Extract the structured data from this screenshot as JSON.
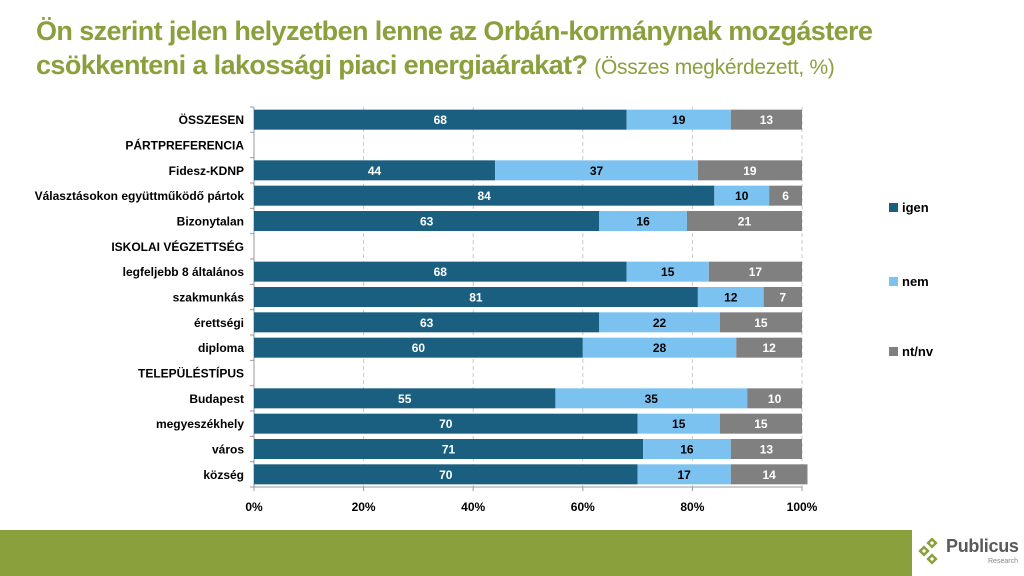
{
  "title": {
    "main": "Ön szerint jelen helyzetben lenne az Orbán-kormánynak mozgástere csökkenteni a lakossági piaci energiaárakat?",
    "sub": "(Összes megkérdezett, %)"
  },
  "colors": {
    "igen": "#1a5f80",
    "nem": "#7cc2f0",
    "ntnv": "#808080",
    "title": "#8aa03c"
  },
  "logo": {
    "name": "Publicus",
    "sub": "Research"
  },
  "chart_data": {
    "type": "bar",
    "orientation": "horizontal",
    "stacked": true,
    "title": "Ön szerint jelen helyzetben lenne az Orbán-kormánynak mozgástere csökkenteni a lakossági piaci energiaárakat? (Összes megkérdezett, %)",
    "xlabel": "",
    "ylabel": "",
    "xlim": [
      0,
      100
    ],
    "xticks": [
      "0%",
      "20%",
      "40%",
      "60%",
      "80%",
      "100%"
    ],
    "grid": true,
    "legend_position": "right",
    "categories": [
      "ÖSSZESEN",
      "PÁRTPREFERENCIA",
      "Fidesz-KDNP",
      "Választásokon együttműködő pártok",
      "Bizonytalan",
      "ISKOLAI VÉGZETTSÉG",
      "legfeljebb 8 általános",
      "szakmunkás",
      "érettségi",
      "diploma",
      "TELEPÜLÉSTÍPUS",
      "Budapest",
      "megyeszékhely",
      "város",
      "község"
    ],
    "series": [
      {
        "name": "igen",
        "color": "#1a5f80",
        "values": [
          68,
          null,
          44,
          84,
          63,
          null,
          68,
          81,
          63,
          60,
          null,
          55,
          70,
          71,
          70
        ]
      },
      {
        "name": "nem",
        "color": "#7cc2f0",
        "values": [
          19,
          null,
          37,
          10,
          16,
          null,
          15,
          12,
          22,
          28,
          null,
          35,
          15,
          16,
          17
        ]
      },
      {
        "name": "nt/nv",
        "color": "#808080",
        "values": [
          13,
          null,
          19,
          6,
          21,
          null,
          17,
          7,
          15,
          12,
          null,
          10,
          15,
          13,
          14
        ]
      }
    ]
  }
}
